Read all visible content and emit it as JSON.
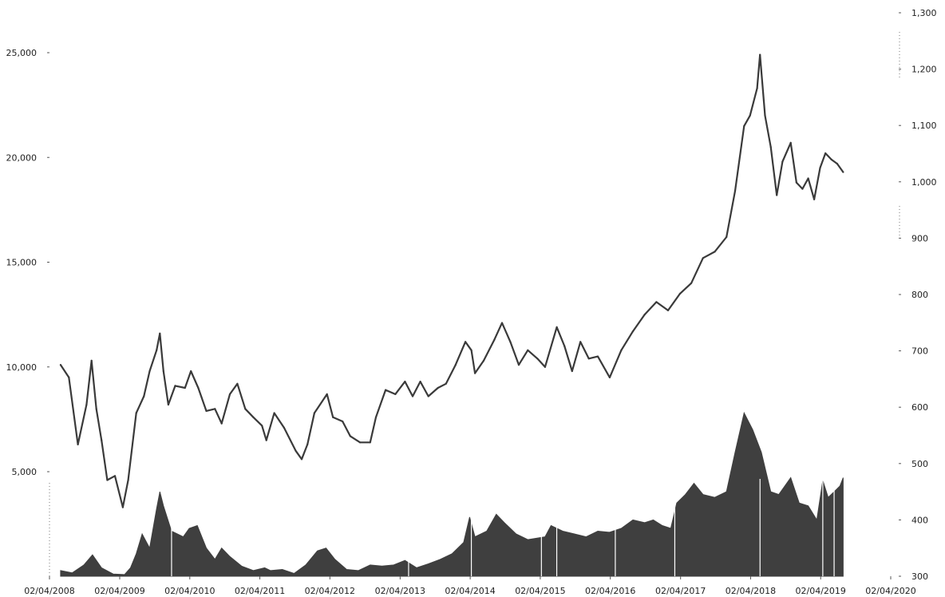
{
  "chart_data": {
    "type": "line",
    "title": "",
    "xlabel": "",
    "ylabel": "",
    "y2label": "",
    "x_ticks": [
      "02/04/2008",
      "02/04/2009",
      "02/04/2010",
      "02/04/2011",
      "02/04/2012",
      "02/04/2013",
      "02/04/2014",
      "02/04/2015",
      "02/04/2016",
      "02/04/2017",
      "02/04/2018",
      "02/04/2019",
      "02/04/2020"
    ],
    "y_left_ticks": [
      "5,000",
      "10,000",
      "15,000",
      "20,000",
      "25,000"
    ],
    "y_right_ticks": [
      "300",
      "400",
      "500",
      "600",
      "700",
      "800",
      "900",
      "1,000",
      "1,100",
      "1,200",
      "1,300"
    ],
    "y_left_range": [
      0,
      26500
    ],
    "y_right_range": [
      300,
      1300
    ],
    "grid": false,
    "legend": "none",
    "colors": {
      "line": "#3a3a3a",
      "area": "#3f3f3f",
      "text": "#222222"
    },
    "series": [
      {
        "axis": "left",
        "type": "line",
        "points": [
          [
            "2008-04-02",
            10100
          ],
          [
            "2008-05-15",
            9500
          ],
          [
            "2008-07-01",
            6300
          ],
          [
            "2008-08-15",
            8200
          ],
          [
            "2008-09-10",
            10300
          ],
          [
            "2008-10-05",
            8000
          ],
          [
            "2008-11-01",
            6500
          ],
          [
            "2008-12-01",
            4600
          ],
          [
            "2009-01-10",
            4800
          ],
          [
            "2009-02-20",
            3300
          ],
          [
            "2009-03-20",
            4600
          ],
          [
            "2009-05-01",
            7800
          ],
          [
            "2009-06-10",
            8600
          ],
          [
            "2009-07-10",
            9800
          ],
          [
            "2009-08-15",
            10800
          ],
          [
            "2009-09-01",
            11600
          ],
          [
            "2009-09-20",
            9800
          ],
          [
            "2009-10-15",
            8200
          ],
          [
            "2009-11-20",
            9100
          ],
          [
            "2010-01-10",
            9000
          ],
          [
            "2010-02-10",
            9800
          ],
          [
            "2010-03-20",
            9000
          ],
          [
            "2010-05-01",
            7900
          ],
          [
            "2010-06-15",
            8000
          ],
          [
            "2010-07-20",
            7300
          ],
          [
            "2010-09-01",
            8700
          ],
          [
            "2010-10-10",
            9200
          ],
          [
            "2010-11-20",
            8000
          ],
          [
            "2011-01-01",
            7600
          ],
          [
            "2011-02-15",
            7200
          ],
          [
            "2011-03-10",
            6500
          ],
          [
            "2011-04-20",
            7800
          ],
          [
            "2011-06-10",
            7100
          ],
          [
            "2011-08-10",
            6000
          ],
          [
            "2011-09-10",
            5600
          ],
          [
            "2011-10-10",
            6300
          ],
          [
            "2011-11-15",
            7800
          ],
          [
            "2012-01-20",
            8700
          ],
          [
            "2012-02-20",
            7600
          ],
          [
            "2012-04-10",
            7400
          ],
          [
            "2012-05-20",
            6700
          ],
          [
            "2012-07-10",
            6400
          ],
          [
            "2012-09-01",
            6400
          ],
          [
            "2012-10-01",
            7600
          ],
          [
            "2012-11-20",
            8900
          ],
          [
            "2013-01-10",
            8700
          ],
          [
            "2013-03-01",
            9300
          ],
          [
            "2013-04-10",
            8600
          ],
          [
            "2013-05-20",
            9300
          ],
          [
            "2013-07-01",
            8600
          ],
          [
            "2013-08-20",
            9000
          ],
          [
            "2013-10-01",
            9200
          ],
          [
            "2013-11-20",
            10100
          ],
          [
            "2014-01-10",
            11200
          ],
          [
            "2014-02-10",
            10800
          ],
          [
            "2014-03-01",
            9700
          ],
          [
            "2014-04-15",
            10300
          ],
          [
            "2014-06-10",
            11300
          ],
          [
            "2014-07-20",
            12100
          ],
          [
            "2014-09-01",
            11200
          ],
          [
            "2014-10-15",
            10100
          ],
          [
            "2014-12-01",
            10800
          ],
          [
            "2015-01-20",
            10400
          ],
          [
            "2015-03-01",
            10000
          ],
          [
            "2015-05-01",
            11900
          ],
          [
            "2015-06-10",
            11000
          ],
          [
            "2015-07-20",
            9800
          ],
          [
            "2015-09-01",
            11200
          ],
          [
            "2015-10-15",
            10400
          ],
          [
            "2015-12-01",
            10500
          ],
          [
            "2016-02-01",
            9500
          ],
          [
            "2016-04-01",
            10800
          ],
          [
            "2016-06-01",
            11700
          ],
          [
            "2016-08-01",
            12500
          ],
          [
            "2016-10-01",
            13100
          ],
          [
            "2016-12-01",
            12700
          ],
          [
            "2017-02-01",
            13500
          ],
          [
            "2017-04-01",
            14000
          ],
          [
            "2017-06-01",
            15200
          ],
          [
            "2017-08-01",
            15500
          ],
          [
            "2017-10-01",
            16200
          ],
          [
            "2017-11-15",
            18400
          ],
          [
            "2018-01-01",
            21500
          ],
          [
            "2018-02-01",
            22000
          ],
          [
            "2018-03-10",
            23300
          ],
          [
            "2018-03-25",
            24900
          ],
          [
            "2018-04-20",
            22000
          ],
          [
            "2018-05-20",
            20500
          ],
          [
            "2018-06-20",
            18200
          ],
          [
            "2018-07-20",
            19800
          ],
          [
            "2018-09-01",
            20700
          ],
          [
            "2018-10-01",
            18800
          ],
          [
            "2018-11-01",
            18500
          ],
          [
            "2018-12-01",
            19000
          ],
          [
            "2019-01-01",
            18000
          ],
          [
            "2019-02-01",
            19500
          ],
          [
            "2019-03-01",
            20200
          ],
          [
            "2019-04-01",
            19900
          ],
          [
            "2019-05-01",
            19700
          ],
          [
            "2019-06-01",
            19300
          ]
        ]
      },
      {
        "axis": "right",
        "type": "area",
        "points": [
          [
            "2008-04-02",
            310
          ],
          [
            "2008-06-01",
            306
          ],
          [
            "2008-08-01",
            320
          ],
          [
            "2008-09-15",
            338
          ],
          [
            "2008-11-01",
            315
          ],
          [
            "2009-01-01",
            304
          ],
          [
            "2009-03-01",
            303
          ],
          [
            "2009-04-01",
            315
          ],
          [
            "2009-05-01",
            340
          ],
          [
            "2009-06-01",
            375
          ],
          [
            "2009-07-10",
            350
          ],
          [
            "2009-08-15",
            420
          ],
          [
            "2009-09-01",
            450
          ],
          [
            "2009-09-20",
            425
          ],
          [
            "2009-11-01",
            380
          ],
          [
            "2010-01-01",
            370
          ],
          [
            "2010-02-01",
            385
          ],
          [
            "2010-03-15",
            390
          ],
          [
            "2010-05-01",
            350
          ],
          [
            "2010-06-15",
            330
          ],
          [
            "2010-07-20",
            350
          ],
          [
            "2010-09-01",
            335
          ],
          [
            "2010-11-01",
            318
          ],
          [
            "2011-01-01",
            310
          ],
          [
            "2011-03-01",
            315
          ],
          [
            "2011-04-01",
            310
          ],
          [
            "2011-06-01",
            312
          ],
          [
            "2011-08-01",
            305
          ],
          [
            "2011-10-01",
            320
          ],
          [
            "2011-12-01",
            345
          ],
          [
            "2012-01-15",
            350
          ],
          [
            "2012-03-01",
            330
          ],
          [
            "2012-05-01",
            312
          ],
          [
            "2012-07-01",
            310
          ],
          [
            "2012-09-01",
            320
          ],
          [
            "2012-11-01",
            318
          ],
          [
            "2013-01-01",
            320
          ],
          [
            "2013-03-01",
            328
          ],
          [
            "2013-05-01",
            315
          ],
          [
            "2013-07-01",
            322
          ],
          [
            "2013-09-01",
            330
          ],
          [
            "2013-11-01",
            340
          ],
          [
            "2014-01-01",
            360
          ],
          [
            "2014-02-01",
            405
          ],
          [
            "2014-03-01",
            370
          ],
          [
            "2014-05-01",
            380
          ],
          [
            "2014-06-20",
            410
          ],
          [
            "2014-08-01",
            395
          ],
          [
            "2014-10-01",
            375
          ],
          [
            "2014-12-01",
            365
          ],
          [
            "2015-03-01",
            370
          ],
          [
            "2015-04-01",
            390
          ],
          [
            "2015-06-01",
            380
          ],
          [
            "2015-08-01",
            375
          ],
          [
            "2015-10-01",
            370
          ],
          [
            "2015-12-01",
            380
          ],
          [
            "2016-02-01",
            378
          ],
          [
            "2016-04-01",
            385
          ],
          [
            "2016-06-01",
            400
          ],
          [
            "2016-08-01",
            395
          ],
          [
            "2016-09-15",
            400
          ],
          [
            "2016-11-01",
            390
          ],
          [
            "2016-12-15",
            385
          ],
          [
            "2017-01-15",
            430
          ],
          [
            "2017-03-01",
            445
          ],
          [
            "2017-04-15",
            465
          ],
          [
            "2017-06-01",
            445
          ],
          [
            "2017-08-01",
            440
          ],
          [
            "2017-10-01",
            450
          ],
          [
            "2017-11-15",
            520
          ],
          [
            "2018-01-01",
            590
          ],
          [
            "2018-02-15",
            560
          ],
          [
            "2018-04-01",
            520
          ],
          [
            "2018-05-20",
            450
          ],
          [
            "2018-07-01",
            445
          ],
          [
            "2018-09-01",
            475
          ],
          [
            "2018-10-15",
            430
          ],
          [
            "2018-12-01",
            425
          ],
          [
            "2019-01-15",
            400
          ],
          [
            "2019-02-15",
            470
          ],
          [
            "2019-03-15",
            440
          ],
          [
            "2019-04-15",
            450
          ],
          [
            "2019-05-15",
            460
          ],
          [
            "2019-06-01",
            475
          ]
        ]
      }
    ]
  }
}
